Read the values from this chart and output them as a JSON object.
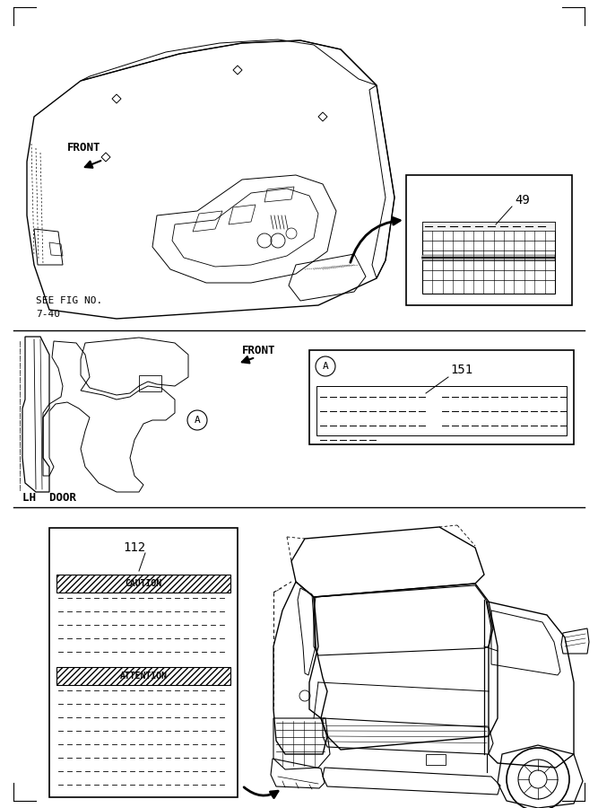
{
  "bg_color": "#ffffff",
  "line_color": "#000000",
  "section1": {
    "front_label": "FRONT",
    "see_fig": "SEE FIG NO.",
    "see_fig2": "7-40",
    "part_number": "49"
  },
  "section2": {
    "front_label": "FRONT",
    "door_label": "LH  DOOR",
    "part_number": "151",
    "circle_label": "A"
  },
  "section3": {
    "part_number": "112",
    "caution_text": "CAUTION",
    "attention_text": "ATTENTION"
  }
}
